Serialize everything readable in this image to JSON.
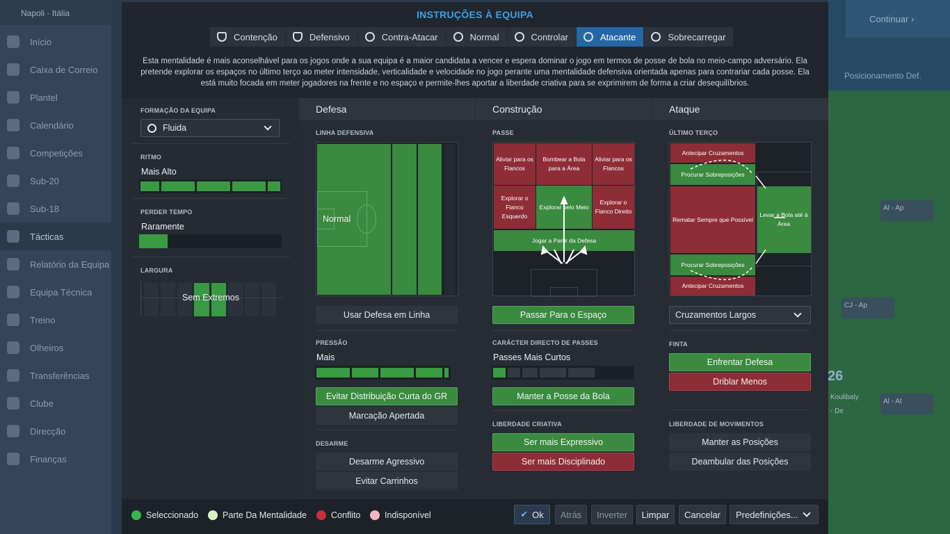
{
  "background": {
    "country": "Napoli",
    "nation": "Itália",
    "nav": [
      "Início",
      "Caixa de Correio",
      "Plantel",
      "Calendário",
      "Competições",
      "Sub-20",
      "Sub-18",
      "Tácticas",
      "Relatório da Equipa",
      "Equipa Técnica",
      "Treino",
      "Olheiros",
      "Transferências",
      "Clube",
      "Direcção",
      "Finanças"
    ],
    "continue_label": "Continuar",
    "right_header": "Posicionamento Def.",
    "cards": [
      "Al - Ap",
      "CJ - Ap",
      "Koulibaly",
      "Al - At",
      "- De"
    ],
    "shirt_number": "26"
  },
  "dialog": {
    "title": "INSTRUÇÕES À EQUIPA",
    "mentalities": [
      {
        "label": "Contenção",
        "icon": "shield-containment-icon",
        "active": false
      },
      {
        "label": "Defensivo",
        "icon": "shield-defensive-icon",
        "active": false
      },
      {
        "label": "Contra-Atacar",
        "icon": "counter-attack-icon",
        "active": false
      },
      {
        "label": "Normal",
        "icon": "balanced-icon",
        "active": false
      },
      {
        "label": "Controlar",
        "icon": "control-icon",
        "active": false
      },
      {
        "label": "Atacante",
        "icon": "attacking-icon",
        "active": true
      },
      {
        "label": "Sobrecarregar",
        "icon": "overload-icon",
        "active": false
      }
    ],
    "description": "Esta mentalidade é mais aconselhável para os jogos onde a sua equipa é a maior candidata a vencer e espera dominar o jogo em termos de posse de bola no meio-campo adversário. Ela pretende explorar os espaços no último terço ao meter intensidade, verticalidade e velocidade no jogo perante uma mentalidade defensiva orientada apenas para contrariar cada posse. Ela está muito focada em meter jogadores na frente e no espaço e permite-lhes aportar a liberdade criativa para se exprimirem de forma a criar desequilíbrios."
  },
  "left": {
    "formation_label": "FORMAÇÃO DA EQUIPA",
    "formation_value": "Fluida",
    "tempo_label": "RITMO",
    "tempo_value": "Mais Alto",
    "tempo_level": 0.9,
    "timewasting_label": "PERDER TEMPO",
    "timewasting_value": "Raramente",
    "timewasting_level": 0.2,
    "width_label": "LARGURA",
    "width_value": "Sem Extremos"
  },
  "defence": {
    "header": "Defesa",
    "line_label": "LINHA DEFENSIVA",
    "line_value": "Normal",
    "line_button": "Usar Defesa em Linha",
    "pressing_label": "PRESSÃO",
    "pressing_value": "Mais",
    "pressing_level": 0.9,
    "pressing_buttons": [
      "Evitar Distribuição Curta do GR",
      "Marcação Apertada"
    ],
    "tackling_label": "DESARME",
    "tackling_buttons": [
      "Desarme Agressivo",
      "Evitar Carrinhos"
    ]
  },
  "buildup": {
    "header": "Construção",
    "passing_label": "PASSE",
    "zones": {
      "left_flank": "Aliviar para os Flancos",
      "long_ball": "Bombear a Bola para a Área",
      "right_flank": "Aliviar para os Flancos",
      "exploit_left": "Explorar o Flanco Esquerdo",
      "exploit_middle": "Explorar pelo Meio",
      "exploit_right": "Explorar o Flanco Direito",
      "play_out": "Jogar a Partir da Defesa"
    },
    "passing_button": "Passar Para o Espaço",
    "directness_label": "CARÁCTER DIRECTO DE PASSES",
    "directness_value": "Passes Mais Curtos",
    "directness_level": 0.25,
    "directness_button": "Manter a Posse da Bola",
    "creative_label": "LIBERDADE CRIATIVA",
    "creative_buttons": [
      "Ser mais Expressivo",
      "Ser mais Disciplinado"
    ]
  },
  "attack": {
    "header": "Ataque",
    "final_third_label": "ÚLTIMO TERÇO",
    "zones": {
      "early_cross_top": "Antecipar Cruzamentos",
      "overlap_top": "Procurar Sobreposições",
      "shoot_on_sight": "Rematar Sempre que Possível",
      "work_into_box": "Levar a Bola até à Área",
      "overlap_bottom": "Procurar Sobreposições",
      "early_cross_bottom": "Antecipar Cruzamentos"
    },
    "cross_select": "Cruzamentos Largos",
    "dribbling_label": "FINTA",
    "dribbling_buttons": [
      "Enfrentar Defesa",
      "Driblar Menos"
    ],
    "movement_label": "LIBERDADE DE MOVIMENTOS",
    "movement_buttons": [
      "Manter as Posições",
      "Deambular das Posições"
    ]
  },
  "footer": {
    "legend": [
      {
        "label": "Seleccionado",
        "color": "#3ab54a"
      },
      {
        "label": "Parte Da Mentalidade",
        "color": "#d7f3c5"
      },
      {
        "label": "Conflito",
        "color": "#c8303a"
      },
      {
        "label": "Indisponível",
        "color": "#f3b8bd"
      }
    ],
    "ok": "Ok",
    "back": "Atrás",
    "invert": "Inverter",
    "clear": "Limpar",
    "cancel": "Cancelar",
    "presets": "Predefinições..."
  }
}
